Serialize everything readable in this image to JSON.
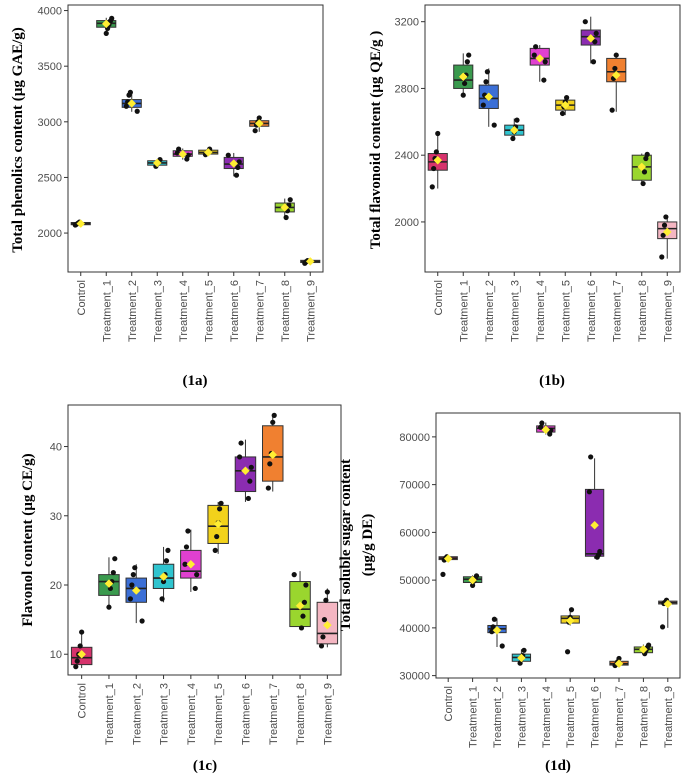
{
  "chart_data": [
    {
      "panel": "1a",
      "type": "box",
      "caption": "(1a)",
      "ylabel": "Total phenolics content (µg GAE/g)",
      "ylim": [
        1650,
        4050
      ],
      "yticks": [
        2000,
        2500,
        3000,
        3500,
        4000
      ],
      "ytick_labels": [
        "2000",
        "2500",
        "3000",
        "3500",
        "4000"
      ],
      "categories": [
        "Control",
        "Treatment_1",
        "Treatment_2",
        "Treatment_3",
        "Treatment_4",
        "Treatment_5",
        "Treatment_6",
        "Treatment_7",
        "Treatment_8",
        "Treatment_9"
      ],
      "colors": [
        "#d6336c",
        "#3a9a4e",
        "#3b6fd6",
        "#2fc4cf",
        "#e040d0",
        "#f2d21b",
        "#8b2cb0",
        "#f08030",
        "#9ad62e",
        "#f4b6c2"
      ],
      "boxes": [
        {
          "q1": 2075,
          "median": 2085,
          "q3": 2095,
          "whisker_low": 2070,
          "whisker_high": 2100,
          "mean": 2085,
          "points": [
            2072,
            2080,
            2088,
            2098
          ]
        },
        {
          "q1": 3850,
          "median": 3885,
          "q3": 3910,
          "whisker_low": 3790,
          "whisker_high": 3935,
          "mean": 3880,
          "points": [
            3795,
            3840,
            3875,
            3905,
            3930
          ]
        },
        {
          "q1": 3130,
          "median": 3165,
          "q3": 3200,
          "whisker_low": 3090,
          "whisker_high": 3270,
          "mean": 3165,
          "points": [
            3095,
            3140,
            3180,
            3240,
            3265
          ]
        },
        {
          "q1": 2610,
          "median": 2630,
          "q3": 2650,
          "whisker_low": 2595,
          "whisker_high": 2665,
          "mean": 2630,
          "points": [
            2600,
            2620,
            2640,
            2660
          ]
        },
        {
          "q1": 2690,
          "median": 2710,
          "q3": 2740,
          "whisker_low": 2660,
          "whisker_high": 2760,
          "mean": 2710,
          "points": [
            2665,
            2700,
            2720,
            2755
          ]
        },
        {
          "q1": 2710,
          "median": 2725,
          "q3": 2745,
          "whisker_low": 2700,
          "whisker_high": 2760,
          "mean": 2725,
          "points": [
            2705,
            2720,
            2735,
            2755
          ]
        },
        {
          "q1": 2580,
          "median": 2620,
          "q3": 2680,
          "whisker_low": 2510,
          "whisker_high": 2720,
          "mean": 2625,
          "points": [
            2520,
            2590,
            2640,
            2700
          ]
        },
        {
          "q1": 2960,
          "median": 2985,
          "q3": 3010,
          "whisker_low": 2910,
          "whisker_high": 3040,
          "mean": 2985,
          "points": [
            2920,
            2970,
            3000,
            3035
          ]
        },
        {
          "q1": 2190,
          "median": 2230,
          "q3": 2270,
          "whisker_low": 2130,
          "whisker_high": 2310,
          "mean": 2230,
          "points": [
            2140,
            2200,
            2250,
            2300
          ]
        },
        {
          "q1": 1735,
          "median": 1745,
          "q3": 1755,
          "whisker_low": 1725,
          "whisker_high": 1760,
          "mean": 1745,
          "points": [
            1728,
            1742,
            1752
          ]
        }
      ]
    },
    {
      "panel": "1b",
      "type": "box",
      "caption": "(1b)",
      "ylabel": "Total flavonoid content (µg QE/g )",
      "ylim": [
        1700,
        3300
      ],
      "yticks": [
        2000,
        2400,
        2800,
        3200
      ],
      "ytick_labels": [
        "2000",
        "2400",
        "2800",
        "3200"
      ],
      "categories": [
        "Control",
        "Treatment_1",
        "Treatment_2",
        "Treatment_3",
        "Treatment_4",
        "Treatment_5",
        "Treatment_6",
        "Treatment_7",
        "Treatment_8",
        "Treatment_9"
      ],
      "colors": [
        "#d6336c",
        "#3a9a4e",
        "#3b6fd6",
        "#2fc4cf",
        "#e040d0",
        "#f2d21b",
        "#8b2cb0",
        "#f08030",
        "#9ad62e",
        "#f4b6c2"
      ],
      "boxes": [
        {
          "q1": 2310,
          "median": 2360,
          "q3": 2410,
          "whisker_low": 2200,
          "whisker_high": 2540,
          "mean": 2370,
          "points": [
            2210,
            2320,
            2380,
            2420,
            2530
          ]
        },
        {
          "q1": 2800,
          "median": 2850,
          "q3": 2940,
          "whisker_low": 2750,
          "whisker_high": 3010,
          "mean": 2870,
          "points": [
            2760,
            2830,
            2880,
            2960,
            3000
          ]
        },
        {
          "q1": 2680,
          "median": 2740,
          "q3": 2820,
          "whisker_low": 2570,
          "whisker_high": 2920,
          "mean": 2750,
          "points": [
            2580,
            2700,
            2760,
            2840,
            2900
          ]
        },
        {
          "q1": 2520,
          "median": 2550,
          "q3": 2580,
          "whisker_low": 2490,
          "whisker_high": 2620,
          "mean": 2550,
          "points": [
            2500,
            2540,
            2570,
            2610
          ]
        },
        {
          "q1": 2940,
          "median": 2980,
          "q3": 3040,
          "whisker_low": 2840,
          "whisker_high": 3060,
          "mean": 2980,
          "points": [
            2850,
            2960,
            3000,
            3050
          ]
        },
        {
          "q1": 2670,
          "median": 2700,
          "q3": 2730,
          "whisker_low": 2640,
          "whisker_high": 2750,
          "mean": 2700,
          "points": [
            2650,
            2690,
            2720,
            2745
          ]
        },
        {
          "q1": 3060,
          "median": 3110,
          "q3": 3150,
          "whisker_low": 2950,
          "whisker_high": 3230,
          "mean": 3100,
          "points": [
            2960,
            3080,
            3130,
            3200
          ]
        },
        {
          "q1": 2840,
          "median": 2900,
          "q3": 2980,
          "whisker_low": 2660,
          "whisker_high": 3010,
          "mean": 2880,
          "points": [
            2670,
            2860,
            2920,
            3000
          ]
        },
        {
          "q1": 2250,
          "median": 2330,
          "q3": 2400,
          "whisker_low": 2220,
          "whisker_high": 2410,
          "mean": 2330,
          "points": [
            2230,
            2300,
            2380,
            2405
          ]
        },
        {
          "q1": 1900,
          "median": 1960,
          "q3": 2000,
          "whisker_low": 1780,
          "whisker_high": 2040,
          "mean": 1940,
          "points": [
            1790,
            1920,
            1980,
            2030
          ]
        }
      ]
    },
    {
      "panel": "1c",
      "type": "box",
      "caption": "(1c)",
      "ylabel": "Flavonol content (µg CE/g)",
      "ylim": [
        7,
        46
      ],
      "yticks": [
        10,
        20,
        30,
        40
      ],
      "ytick_labels": [
        "10",
        "20",
        "30",
        "40"
      ],
      "categories": [
        "Control",
        "Treatment_1",
        "Treatment_2",
        "Treatment_3",
        "Treatment_4",
        "Treatment_5",
        "Treatment_6",
        "Treatment_7",
        "Treatment_8",
        "Treatment_9"
      ],
      "colors": [
        "#d6336c",
        "#3a9a4e",
        "#3b6fd6",
        "#2fc4cf",
        "#e040d0",
        "#f2d21b",
        "#8b2cb0",
        "#f08030",
        "#9ad62e",
        "#f4b6c2"
      ],
      "boxes": [
        {
          "q1": 8.5,
          "median": 9.5,
          "q3": 11,
          "whisker_low": 8,
          "whisker_high": 13.5,
          "mean": 10,
          "points": [
            8.2,
            9,
            10,
            11.2,
            13.2
          ]
        },
        {
          "q1": 18.5,
          "median": 20.5,
          "q3": 21.5,
          "whisker_low": 16.5,
          "whisker_high": 24,
          "mean": 20.2,
          "points": [
            16.8,
            19.5,
            20.5,
            21.8,
            23.8
          ]
        },
        {
          "q1": 17.5,
          "median": 19.5,
          "q3": 21,
          "whisker_low": 14.5,
          "whisker_high": 23,
          "mean": 19.2,
          "points": [
            14.8,
            18,
            20,
            21.5,
            22.5
          ]
        },
        {
          "q1": 19.5,
          "median": 21,
          "q3": 23,
          "whisker_low": 17.5,
          "whisker_high": 25.5,
          "mean": 21.2,
          "points": [
            18,
            20.5,
            21.5,
            23.5,
            25
          ]
        },
        {
          "q1": 21,
          "median": 22,
          "q3": 25,
          "whisker_low": 19,
          "whisker_high": 28,
          "mean": 23,
          "points": [
            19.5,
            21.5,
            23,
            25.5,
            27.8
          ]
        },
        {
          "q1": 26,
          "median": 28.5,
          "q3": 31.5,
          "whisker_low": 24.5,
          "whisker_high": 32,
          "mean": 28.8,
          "points": [
            25,
            27,
            29,
            31,
            31.8
          ]
        },
        {
          "q1": 33.5,
          "median": 36.5,
          "q3": 38.5,
          "whisker_low": 32,
          "whisker_high": 41,
          "mean": 36.5,
          "points": [
            32.5,
            35,
            37,
            38.5,
            40.5
          ]
        },
        {
          "q1": 35,
          "median": 38.5,
          "q3": 43,
          "whisker_low": 33.5,
          "whisker_high": 44.5,
          "mean": 38.8,
          "points": [
            34,
            37.5,
            39,
            43.5,
            44.5
          ]
        },
        {
          "q1": 14,
          "median": 16.5,
          "q3": 20.5,
          "whisker_low": 13.5,
          "whisker_high": 22,
          "mean": 17,
          "points": [
            13.8,
            15.5,
            17.5,
            20,
            21.5
          ]
        },
        {
          "q1": 11.5,
          "median": 13,
          "q3": 17.5,
          "whisker_low": 11,
          "whisker_high": 19.5,
          "mean": 14.2,
          "points": [
            11.2,
            12.5,
            15,
            17.8,
            19
          ]
        }
      ]
    },
    {
      "panel": "1d",
      "type": "box",
      "caption": "(1d)",
      "ylabel_lines": [
        "Total soluble sugar content",
        "(µg/g DE)"
      ],
      "ylim": [
        29500,
        85000
      ],
      "yticks": [
        30000,
        40000,
        50000,
        60000,
        70000,
        80000
      ],
      "ytick_labels": [
        "30000",
        "40000",
        "50000",
        "60000",
        "70000",
        "80000"
      ],
      "categories": [
        "Control",
        "Treatment_1",
        "Treatment_2",
        "Treatment_3",
        "Treatment_4",
        "Treatment_5",
        "Treatment_6",
        "Treatment_7",
        "Treatment_8",
        "Treatment_9"
      ],
      "colors": [
        "#d6336c",
        "#3a9a4e",
        "#3b6fd6",
        "#2fc4cf",
        "#e040d0",
        "#f2d21b",
        "#8b2cb0",
        "#f08030",
        "#9ad62e",
        "#f4b6c2"
      ],
      "boxes": [
        {
          "q1": 54300,
          "median": 54600,
          "q3": 54900,
          "whisker_low": 54000,
          "whisker_high": 55000,
          "mean": 54500,
          "points": [
            51200,
            54200,
            54600,
            54900
          ]
        },
        {
          "q1": 49500,
          "median": 50200,
          "q3": 50700,
          "whisker_low": 48800,
          "whisker_high": 51000,
          "mean": 50000,
          "points": [
            48900,
            49800,
            50400,
            50900
          ]
        },
        {
          "q1": 39000,
          "median": 39800,
          "q3": 40500,
          "whisker_low": 36000,
          "whisker_high": 42000,
          "mean": 39500,
          "points": [
            36200,
            39200,
            40200,
            41800
          ]
        },
        {
          "q1": 33000,
          "median": 33800,
          "q3": 34500,
          "whisker_low": 32500,
          "whisker_high": 35500,
          "mean": 33700,
          "points": [
            32600,
            33500,
            34200,
            35300
          ]
        },
        {
          "q1": 81000,
          "median": 81800,
          "q3": 82300,
          "whisker_low": 80500,
          "whisker_high": 83000,
          "mean": 81500,
          "points": [
            80600,
            81400,
            82000,
            82900
          ]
        },
        {
          "q1": 41000,
          "median": 42000,
          "q3": 42500,
          "whisker_low": 40500,
          "whisker_high": 44000,
          "mean": 41500,
          "points": [
            35000,
            41200,
            42200,
            43800
          ]
        },
        {
          "q1": 55000,
          "median": 55500,
          "q3": 69000,
          "whisker_low": 54500,
          "whisker_high": 75500,
          "mean": 61500,
          "points": [
            54800,
            55300,
            56000,
            68500,
            75800
          ]
        },
        {
          "q1": 32200,
          "median": 32500,
          "q3": 33000,
          "whisker_low": 32000,
          "whisker_high": 33800,
          "mean": 32500,
          "points": [
            32100,
            32400,
            32900,
            33600
          ]
        },
        {
          "q1": 34800,
          "median": 35500,
          "q3": 36000,
          "whisker_low": 34500,
          "whisker_high": 36500,
          "mean": 35500,
          "points": [
            34600,
            35300,
            35900,
            36400
          ]
        },
        {
          "q1": 45000,
          "median": 45300,
          "q3": 45600,
          "whisker_low": 40000,
          "whisker_high": 46000,
          "mean": 45000,
          "points": [
            40200,
            45100,
            45400,
            45800
          ]
        }
      ]
    }
  ]
}
